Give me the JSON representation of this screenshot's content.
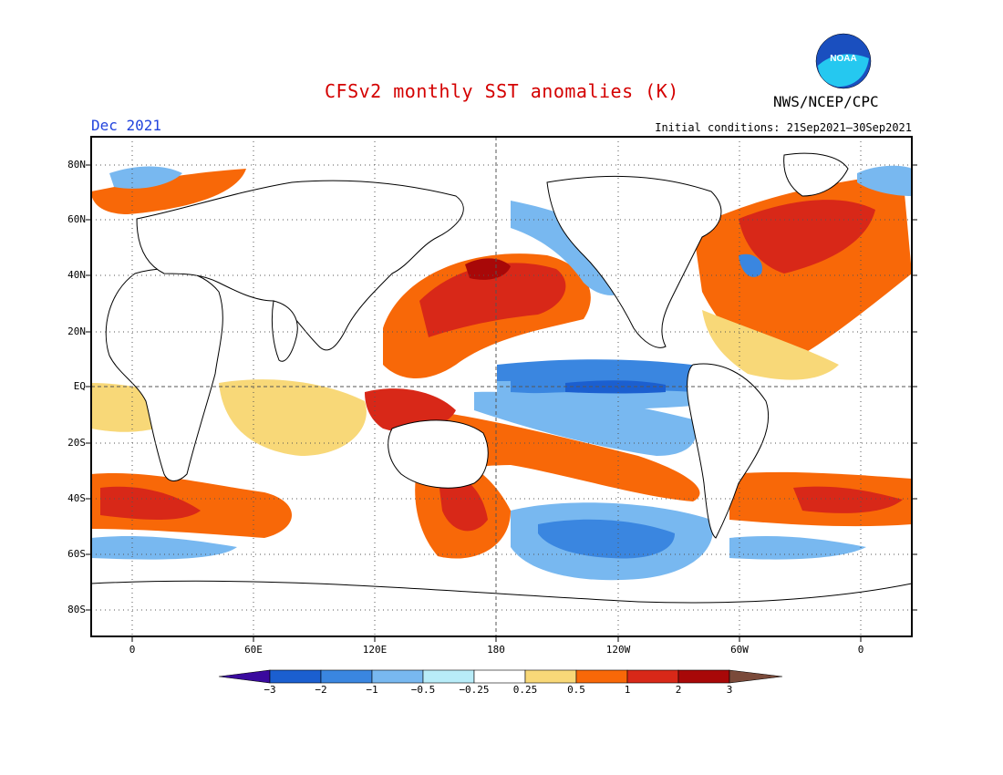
{
  "title": "CFSv2 monthly SST anomalies (K)",
  "agency": "NWS/NCEP/CPC",
  "logo_text": "NOAA",
  "valid_month": "Dec 2021",
  "initial_conditions": "Initial conditions: 21Sep2021–30Sep2021",
  "lat_labels": [
    "80N",
    "60N",
    "40N",
    "20N",
    "EQ",
    "20S",
    "40S",
    "60S",
    "80S"
  ],
  "lon_labels": [
    "0",
    "60E",
    "120E",
    "180",
    "120W",
    "60W",
    "0"
  ],
  "colorbar": {
    "labels": [
      "−3",
      "−2",
      "−1",
      "−0.5",
      "−0.25",
      "0.25",
      "0.5",
      "1",
      "2",
      "3"
    ],
    "colors": [
      "#3a0a9e",
      "#1b5fd0",
      "#3a86e0",
      "#78b8f0",
      "#b8ecf8",
      "#ffffff",
      "#f8d878",
      "#f86808",
      "#d82818",
      "#a80808",
      "#7a4a3a"
    ]
  },
  "colors": {
    "title": "#d40000",
    "valid_month": "#2244dd"
  }
}
